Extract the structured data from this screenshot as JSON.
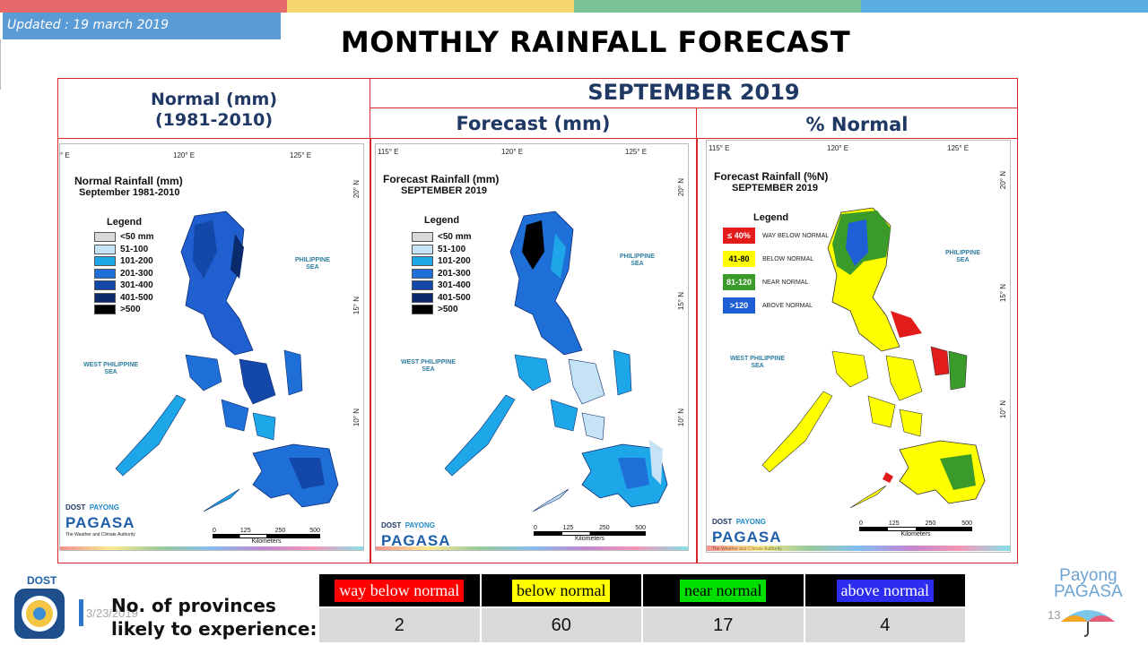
{
  "topbar_colors": [
    "#e8696b",
    "#f5d76e",
    "#7bc49a",
    "#5aaee0"
  ],
  "updated": "Updated : 19 march 2019",
  "title": "MONTHLY RAINFALL FORECAST",
  "headers": {
    "normal_line1": "Normal (mm)",
    "normal_line2": "(1981-2010)",
    "month": "SEPTEMBER 2019",
    "forecast": "Forecast (mm)",
    "percent": "% Normal"
  },
  "maps": {
    "normal": {
      "title": "Normal Rainfall (mm)",
      "subtitle": "September 1981-2010",
      "legend_title": "Legend",
      "legend": [
        {
          "label": "<50 mm",
          "color": "#d9d9d9"
        },
        {
          "label": "51-100",
          "color": "#c6e3f5"
        },
        {
          "label": "101-200",
          "color": "#1ea7e8"
        },
        {
          "label": "201-300",
          "color": "#1f6fd8"
        },
        {
          "label": "301-400",
          "color": "#1448a8"
        },
        {
          "label": "401-500",
          "color": "#0b2a6b"
        },
        {
          "label": ">500",
          "color": "#000000"
        }
      ],
      "coords_top": [
        "° E",
        "120° E",
        "125° E"
      ],
      "coords_side": [
        "20° N",
        "15° N",
        "10° N"
      ]
    },
    "forecast": {
      "title": "Forecast Rainfall (mm)",
      "subtitle": "SEPTEMBER 2019",
      "legend_title": "Legend",
      "legend": [
        {
          "label": "<50 mm",
          "color": "#d9d9d9"
        },
        {
          "label": "51-100",
          "color": "#c6e3f5"
        },
        {
          "label": "101-200",
          "color": "#1ea7e8"
        },
        {
          "label": "201-300",
          "color": "#1f6fd8"
        },
        {
          "label": "301-400",
          "color": "#1448a8"
        },
        {
          "label": "401-500",
          "color": "#0b2a6b"
        },
        {
          "label": ">500",
          "color": "#000000"
        }
      ],
      "coords_top": [
        "115° E",
        "120° E",
        "125° E"
      ],
      "coords_side": [
        "20° N",
        "15° N",
        "10° N"
      ]
    },
    "percent": {
      "title": "Forecast Rainfall (%N)",
      "subtitle": "SEPTEMBER 2019",
      "legend_title": "Legend",
      "legend": [
        {
          "label": "≤ 40%",
          "desc": "WAY BELOW NORMAL",
          "color": "#e21b1b",
          "text": "#ffffff"
        },
        {
          "label": "41-80",
          "desc": "BELOW NORMAL",
          "color": "#ffff00",
          "text": "#000000"
        },
        {
          "label": "81-120",
          "desc": "NEAR NORMAL",
          "color": "#3a9a2a",
          "text": "#ffffff"
        },
        {
          "label": ">120",
          "desc": "ABOVE NORMAL",
          "color": "#1f5fd6",
          "text": "#ffffff"
        }
      ],
      "coords_top": [
        "115° E",
        "120° E",
        "125° E"
      ],
      "coords_side": [
        "20° N",
        "15° N",
        "10° N"
      ]
    },
    "sea_east_1": "PHILIPPINE",
    "sea_east_2": "SEA",
    "sea_west_1": "WEST PHILIPPINE",
    "sea_west_2": "SEA",
    "scale_ticks": [
      "0",
      "125",
      "250",
      "500"
    ],
    "scale_unit": "Kilometers",
    "logo_dost": "DOST",
    "logo_payong": "PAYONG",
    "logo_pagasa": "PAGASA",
    "logo_tag": "The Weather and Climate Authority"
  },
  "bottom": {
    "line1": "No. of provinces",
    "line2": "likely to experience:",
    "date": "3/23/2019",
    "page": "13",
    "logo_line1": "Payong",
    "logo_line2": "PAGASA",
    "dost_label": "DOST"
  },
  "counts": [
    {
      "label": "way below normal",
      "value": "2",
      "bg": "#ff0000",
      "fg": "#ffffff"
    },
    {
      "label": "below normal",
      "value": "60",
      "bg": "#ffff00",
      "fg": "#000000"
    },
    {
      "label": "near normal",
      "value": "17",
      "bg": "#00e000",
      "fg": "#000000"
    },
    {
      "label": "above normal",
      "value": "4",
      "bg": "#2d2df0",
      "fg": "#ffffff"
    }
  ]
}
